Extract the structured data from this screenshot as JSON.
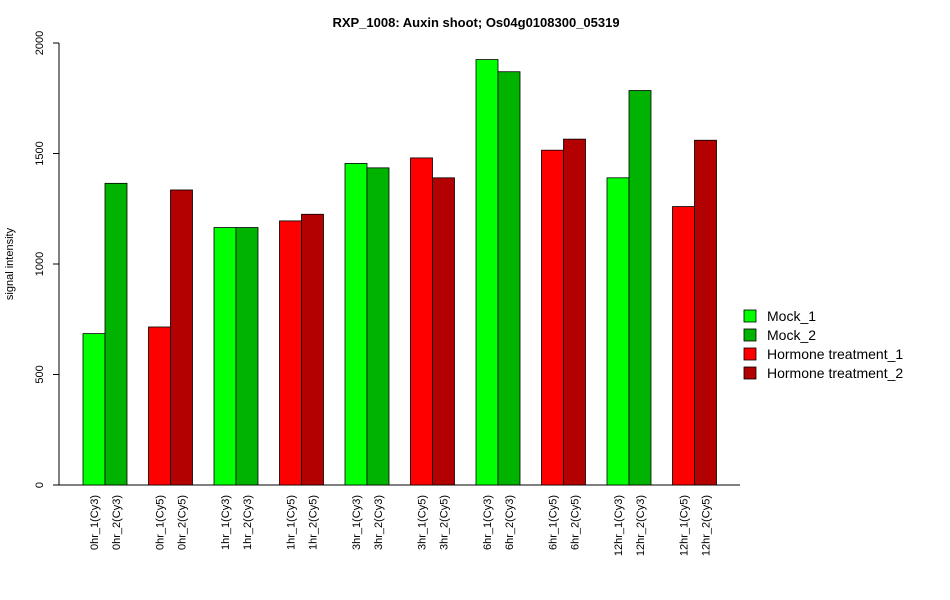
{
  "chart_data": {
    "type": "bar",
    "title": "RXP_1008: Auxin shoot; Os04g0108300_05319",
    "xlabel": "",
    "ylabel": "signal intensity",
    "ylim": [
      0,
      2000
    ],
    "yticks": [
      0,
      500,
      1000,
      1500,
      2000
    ],
    "grid": false,
    "legend_position": "right",
    "categories": [
      "0hr_1(Cy3)",
      "0hr_2(Cy3)",
      "0hr_1(Cy5)",
      "0hr_2(Cy5)",
      "1hr_1(Cy3)",
      "1hr_2(Cy3)",
      "1hr_1(Cy5)",
      "1hr_2(Cy5)",
      "3hr_1(Cy3)",
      "3hr_2(Cy3)",
      "3hr_1(Cy5)",
      "3hr_2(Cy5)",
      "6hr_1(Cy3)",
      "6hr_2(Cy3)",
      "6hr_1(Cy5)",
      "6hr_2(Cy5)",
      "12hr_1(Cy3)",
      "12hr_2(Cy3)",
      "12hr_1(Cy5)",
      "12hr_2(Cy5)"
    ],
    "values": [
      685,
      1365,
      715,
      1335,
      1165,
      1165,
      1195,
      1225,
      1455,
      1435,
      1480,
      1390,
      1925,
      1870,
      1515,
      1565,
      1390,
      1785,
      1260,
      1560
    ],
    "bar_series": [
      0,
      1,
      2,
      3,
      0,
      1,
      2,
      3,
      0,
      1,
      2,
      3,
      0,
      1,
      2,
      3,
      0,
      1,
      2,
      3
    ],
    "series": [
      {
        "name": "Mock_1",
        "color": "#00ff00"
      },
      {
        "name": "Mock_2",
        "color": "#00b300"
      },
      {
        "name": "Hormone treatment_1",
        "color": "#ff0000"
      },
      {
        "name": "Hormone treatment_2",
        "color": "#b30000"
      }
    ]
  }
}
